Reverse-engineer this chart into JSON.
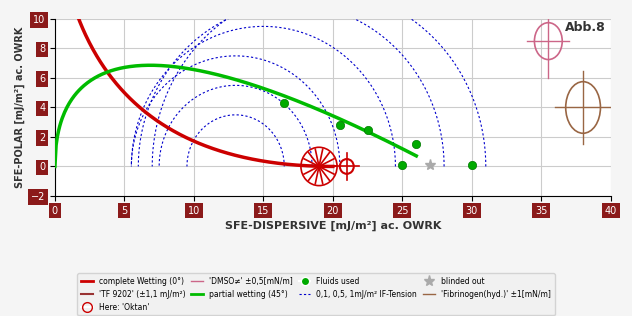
{
  "xlim": [
    0,
    40
  ],
  "ylim": [
    -2,
    10
  ],
  "xlabel": "SFE-DISPERSIVE [mJ/m²] ac. OWRK",
  "ylabel": "SFE-POLAR [mJ/m²] ac. OWRK",
  "title": "Abb.8",
  "bg_color": "#f5f5f5",
  "plot_bg": "#ffffff",
  "grid_color": "#cccccc",
  "red_curve_color": "#cc0000",
  "green_curve_color": "#00bb00",
  "blue_dot_color": "#0000cc",
  "tf9202_x": 19.0,
  "tf9202_y": 0.0,
  "tf9202_color": "#cc0000",
  "oktan_x": 21.0,
  "oktan_y": 0.0,
  "oktan_color": "#cc0000",
  "dmso_x": 35.5,
  "dmso_y": 8.5,
  "dmso_color": "#cc6688",
  "fibrinogen_x": 38.0,
  "fibrinogen_y": 4.0,
  "fibrinogen_color": "#996644",
  "blinded_x": 27.0,
  "blinded_y": 0.1,
  "green_dots": [
    [
      16.5,
      4.3
    ],
    [
      20.5,
      2.8
    ],
    [
      22.5,
      2.5
    ],
    [
      26.0,
      1.5
    ],
    [
      25.0,
      0.1
    ],
    [
      30.0,
      0.1
    ]
  ],
  "tick_label_bg": "#8b1a1a",
  "tick_label_color": "#ffffff"
}
